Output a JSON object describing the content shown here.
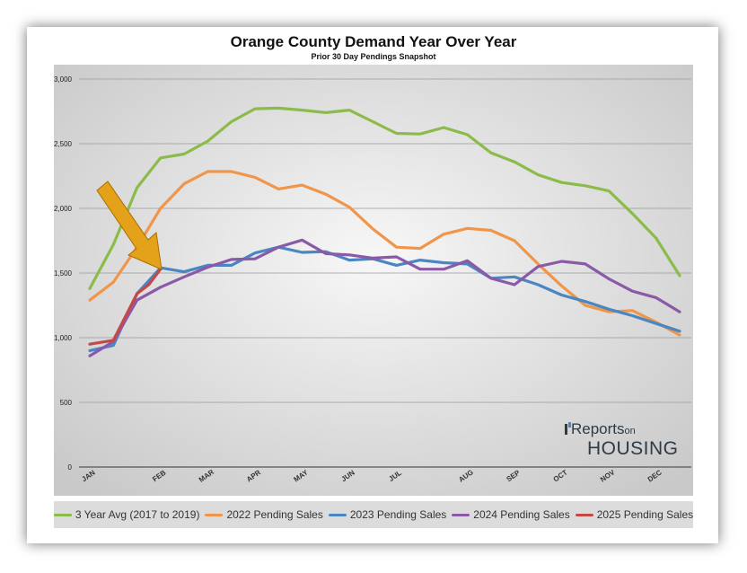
{
  "title": "Orange County Demand Year Over Year",
  "subtitle": "Prior 30 Day Pendings Snapshot",
  "logo": {
    "line1": "Reports",
    "line1_small": "on",
    "line2": "HOUSING"
  },
  "chart_data": {
    "type": "line",
    "title": "Orange County Demand Year Over Year",
    "subtitle": "Prior 30 Day Pendings Snapshot",
    "xlabel": "",
    "ylabel": "",
    "ylim": [
      0,
      3000
    ],
    "yticks": [
      0,
      500,
      1000,
      1500,
      2000,
      2500,
      3000
    ],
    "ytick_labels": [
      "0",
      "500",
      "1,000",
      "1,500",
      "2,000",
      "2,500",
      "3,000"
    ],
    "xlim": [
      0,
      12.3
    ],
    "months": [
      {
        "label": "JAN",
        "x": 0
      },
      {
        "label": "FEB",
        "x": 1.5
      },
      {
        "label": "MAR",
        "x": 2.5
      },
      {
        "label": "APR",
        "x": 3.5
      },
      {
        "label": "MAY",
        "x": 4.5
      },
      {
        "label": "JUN",
        "x": 5.5
      },
      {
        "label": "JUL",
        "x": 6.5
      },
      {
        "label": "AUG",
        "x": 8.0
      },
      {
        "label": "SEP",
        "x": 9.0
      },
      {
        "label": "OCT",
        "x": 10.0
      },
      {
        "label": "NOV",
        "x": 11.0
      },
      {
        "label": "DEC",
        "x": 12.0
      }
    ],
    "grid": true,
    "legend_position": "bottom",
    "annotation": "arrow pointing to latest 2025 value",
    "series": [
      {
        "name": "3 Year Avg (2017 to 2019)",
        "color": "#8bbb4a",
        "x": [
          0,
          0.5,
          1.0,
          1.5,
          2.0,
          2.5,
          3.0,
          3.5,
          4.0,
          4.5,
          5.0,
          5.5,
          6.0,
          6.5,
          7.0,
          7.5,
          8.0,
          8.5,
          9.0,
          9.5,
          10.0,
          10.5,
          11.0,
          11.5,
          12.0,
          12.5
        ],
        "values": [
          1380,
          1720,
          2160,
          2390,
          2420,
          2520,
          2670,
          2770,
          2775,
          2760,
          2740,
          2760,
          2670,
          2580,
          2575,
          2625,
          2570,
          2430,
          2360,
          2260,
          2200,
          2175,
          2135,
          1960,
          1770,
          1480
        ]
      },
      {
        "name": "2022 Pending Sales",
        "color": "#f0954a",
        "x": [
          0,
          0.5,
          1.0,
          1.5,
          2.0,
          2.5,
          3.0,
          3.5,
          4.0,
          4.5,
          5.0,
          5.5,
          6.0,
          6.5,
          7.0,
          7.5,
          8.0,
          8.5,
          9.0,
          9.5,
          10.0,
          10.5,
          11.0,
          11.5,
          12.0,
          12.5
        ],
        "values": [
          1290,
          1430,
          1700,
          2000,
          2190,
          2285,
          2285,
          2240,
          2150,
          2180,
          2110,
          2010,
          1840,
          1700,
          1690,
          1800,
          1845,
          1830,
          1750,
          1570,
          1400,
          1250,
          1200,
          1210,
          1120,
          1020
        ]
      },
      {
        "name": "2023 Pending Sales",
        "color": "#4a86c2",
        "x": [
          0,
          0.5,
          1.0,
          1.5,
          2.0,
          2.5,
          3.0,
          3.5,
          4.0,
          4.5,
          5.0,
          5.5,
          6.0,
          6.5,
          7.0,
          7.5,
          8.0,
          8.5,
          9.0,
          9.5,
          10.0,
          10.5,
          11.0,
          11.5,
          12.0,
          12.5
        ],
        "values": [
          900,
          940,
          1340,
          1540,
          1510,
          1560,
          1560,
          1655,
          1700,
          1660,
          1665,
          1600,
          1610,
          1560,
          1600,
          1580,
          1570,
          1460,
          1470,
          1410,
          1330,
          1280,
          1220,
          1170,
          1110,
          1050
        ]
      },
      {
        "name": "2024 Pending Sales",
        "color": "#8a5aa8",
        "x": [
          0,
          0.5,
          1.0,
          1.5,
          2.0,
          2.5,
          3.0,
          3.5,
          4.0,
          4.5,
          5.0,
          5.5,
          6.0,
          6.5,
          7.0,
          7.5,
          8.0,
          8.5,
          9.0,
          9.5,
          10.0,
          10.5,
          11.0,
          11.5,
          12.0,
          12.5
        ],
        "values": [
          860,
          970,
          1290,
          1390,
          1470,
          1545,
          1605,
          1610,
          1700,
          1755,
          1650,
          1640,
          1615,
          1625,
          1530,
          1530,
          1595,
          1460,
          1410,
          1550,
          1590,
          1570,
          1455,
          1360,
          1310,
          1200
        ]
      },
      {
        "name": "2025 Pending Sales",
        "color": "#c44848",
        "x": [
          0,
          0.5,
          1.0,
          1.25,
          1.5
        ],
        "values": [
          950,
          980,
          1340,
          1410,
          1530
        ]
      }
    ]
  }
}
